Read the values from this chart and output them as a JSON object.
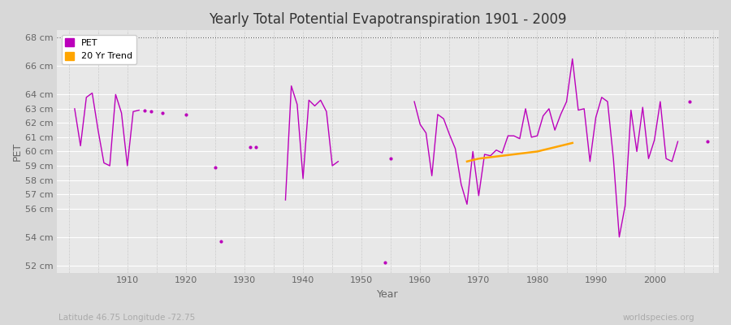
{
  "title": "Yearly Total Potential Evapotranspiration 1901 - 2009",
  "xlabel": "Year",
  "ylabel": "PET",
  "lat_lon_label": "Latitude 46.75 Longitude -72.75",
  "watermark": "worldspecies.org",
  "fig_bg_color": "#d8d8d8",
  "plot_bg_color": "#e8e8e8",
  "line_color": "#bb00bb",
  "trend_color": "#ffa500",
  "ylim_min": 51.5,
  "ylim_max": 68.5,
  "xlim_min": 1898,
  "xlim_max": 2011,
  "years": [
    1901,
    1902,
    1903,
    1904,
    1905,
    1906,
    1907,
    1908,
    1909,
    1910,
    1911,
    1912,
    1913,
    1914,
    1916,
    1920,
    1925,
    1926,
    1931,
    1932,
    1937,
    1938,
    1939,
    1940,
    1941,
    1942,
    1943,
    1944,
    1945,
    1946,
    1954,
    1955,
    1959,
    1960,
    1961,
    1962,
    1963,
    1964,
    1965,
    1966,
    1967,
    1968,
    1969,
    1970,
    1971,
    1972,
    1973,
    1974,
    1975,
    1976,
    1977,
    1978,
    1979,
    1980,
    1981,
    1982,
    1983,
    1984,
    1985,
    1986,
    1987,
    1988,
    1989,
    1990,
    1991,
    1992,
    1993,
    1994,
    1995,
    1996,
    1997,
    1998,
    1999,
    2000,
    2001,
    2002,
    2003,
    2004,
    2006,
    2009
  ],
  "pet": [
    63.0,
    60.4,
    63.8,
    64.1,
    61.5,
    59.2,
    59.0,
    64.0,
    62.7,
    59.0,
    62.8,
    62.9,
    62.9,
    62.8,
    62.7,
    62.6,
    58.9,
    53.7,
    60.3,
    60.3,
    56.6,
    64.6,
    63.3,
    58.1,
    63.6,
    63.2,
    63.6,
    62.8,
    59.0,
    59.3,
    52.2,
    59.5,
    63.5,
    61.9,
    61.3,
    58.3,
    62.6,
    62.3,
    61.2,
    60.2,
    57.7,
    56.3,
    60.0,
    56.9,
    59.8,
    59.7,
    60.1,
    59.9,
    61.1,
    61.1,
    60.9,
    63.0,
    61.0,
    61.1,
    62.5,
    63.0,
    61.5,
    62.6,
    63.5,
    66.5,
    62.9,
    63.0,
    59.3,
    62.4,
    63.8,
    63.5,
    59.5,
    54.0,
    56.2,
    62.9,
    60.0,
    63.1,
    59.5,
    60.8,
    63.5,
    59.5,
    59.3,
    60.7,
    63.5,
    60.7
  ],
  "connected_segments": [
    [
      1901,
      1902,
      1903,
      1904,
      1905,
      1906,
      1907,
      1908,
      1909,
      1910,
      1911,
      1912
    ],
    [
      1937,
      1938,
      1939,
      1940,
      1941,
      1942,
      1943,
      1944,
      1945,
      1946
    ],
    [
      1959,
      1960,
      1961,
      1962,
      1963,
      1964,
      1965,
      1966,
      1967,
      1968,
      1969,
      1970,
      1971,
      1972,
      1973,
      1974,
      1975,
      1976,
      1977,
      1978,
      1979,
      1980,
      1981,
      1982,
      1983,
      1984,
      1985,
      1986,
      1987,
      1988,
      1989,
      1990,
      1991,
      1992,
      1993,
      1994,
      1995,
      1996,
      1997,
      1998,
      1999,
      2000,
      2001,
      2002,
      2003,
      2004
    ]
  ],
  "isolated_years": [
    1913,
    1914,
    1916,
    1920,
    1925,
    1926,
    1931,
    1932,
    1954,
    1955,
    2006,
    2009
  ],
  "isolated_vals": [
    62.9,
    62.8,
    62.7,
    62.6,
    58.9,
    53.7,
    60.3,
    60.3,
    52.2,
    59.5,
    63.5,
    60.7
  ],
  "trend_years": [
    1968,
    1969,
    1970,
    1971,
    1972,
    1973,
    1974,
    1975,
    1976,
    1977,
    1978,
    1979,
    1980,
    1981,
    1982,
    1983,
    1984,
    1985,
    1986
  ],
  "trend_values": [
    59.3,
    59.4,
    59.5,
    59.55,
    59.6,
    59.65,
    59.7,
    59.75,
    59.8,
    59.85,
    59.9,
    59.95,
    60.0,
    60.1,
    60.2,
    60.3,
    60.4,
    60.5,
    60.6
  ],
  "ytick_vals": [
    52,
    54,
    56,
    57,
    58,
    59,
    60,
    61,
    62,
    63,
    64,
    66,
    68
  ],
  "ytick_labs": [
    "52 cm",
    "54 cm",
    "56 cm",
    "57 cm",
    "58 cm",
    "59 cm",
    "60 cm",
    "61 cm",
    "62 cm",
    "63 cm",
    "64 cm",
    "66 cm",
    "68 cm"
  ],
  "xtick_vals": [
    1910,
    1920,
    1930,
    1940,
    1950,
    1960,
    1970,
    1980,
    1990,
    2000
  ]
}
